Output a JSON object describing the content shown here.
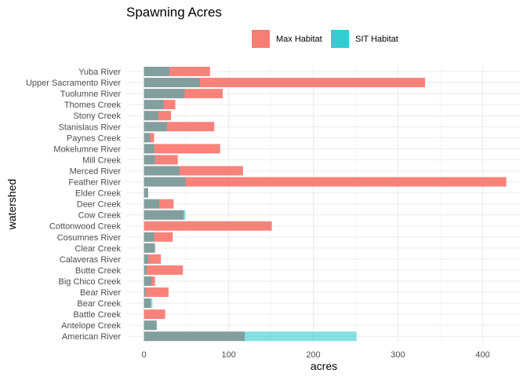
{
  "chart_data": {
    "type": "bar",
    "orientation": "horizontal",
    "title": "Spawning Acres",
    "xlabel": "acres",
    "ylabel": "watershed",
    "xlim": [
      -20,
      445
    ],
    "xticks": [
      0,
      100,
      200,
      300,
      400
    ],
    "grid": true,
    "legend_position": "top",
    "categories": [
      "Yuba River",
      "Upper Sacramento River",
      "Tuolumne River",
      "Thomes Creek",
      "Stony Creek",
      "Stanislaus River",
      "Paynes Creek",
      "Mokelumne River",
      "Mill Creek",
      "Merced River",
      "Feather River",
      "Elder Creek",
      "Deer Creek",
      "Cow Creek",
      "Cottonwood Creek",
      "Cosumnes River",
      "Clear Creek",
      "Calaveras River",
      "Butte Creek",
      "Big Chico Creek",
      "Bear River",
      "Bear Creek",
      "Battle Creek",
      "Antelope Creek",
      "American River"
    ],
    "series": [
      {
        "name": "Max Habitat",
        "color": "#F8766D",
        "values": [
          78,
          332,
          93,
          37,
          32,
          83,
          12,
          90,
          40,
          117,
          428,
          5,
          35,
          47,
          151,
          34,
          13,
          20,
          46,
          13,
          29,
          8,
          25,
          15,
          119
        ]
      },
      {
        "name": "SIT Habitat",
        "color": "#00BFC4",
        "values": [
          30,
          66,
          48,
          23,
          17,
          27,
          7,
          12,
          13,
          42,
          49,
          5,
          18,
          49,
          0,
          12,
          13,
          5,
          3,
          9,
          2,
          10,
          0,
          15,
          251
        ]
      }
    ]
  }
}
